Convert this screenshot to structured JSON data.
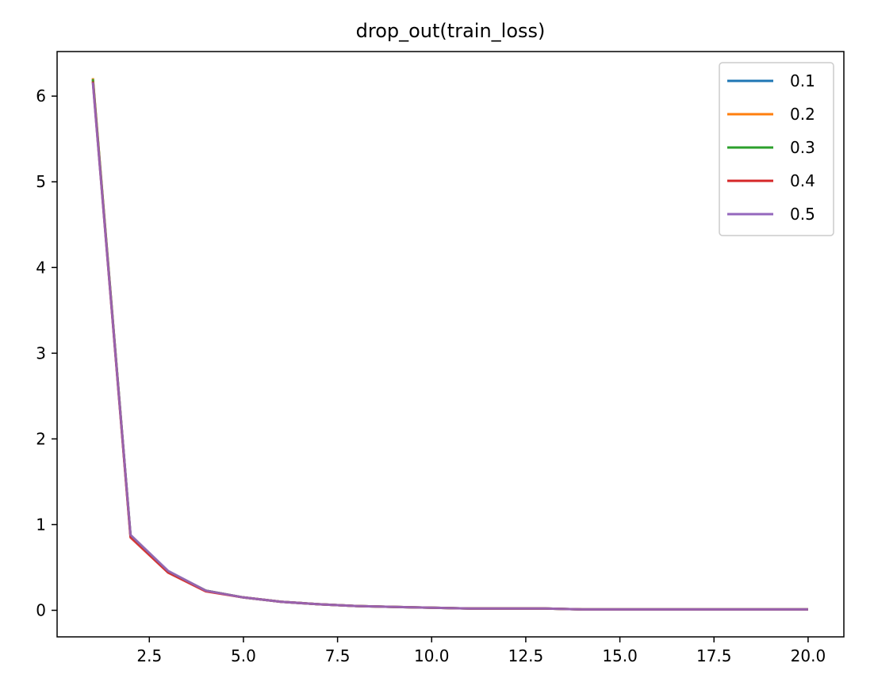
{
  "chart_data": {
    "type": "line",
    "title": "drop_out(train_loss)",
    "xlabel": "",
    "ylabel": "",
    "xlim": [
      0.05,
      20.95
    ],
    "ylim": [
      -0.31,
      6.52
    ],
    "xticks": [
      2.5,
      5.0,
      7.5,
      10.0,
      12.5,
      15.0,
      17.5,
      20.0
    ],
    "xtick_labels": [
      "2.5",
      "5.0",
      "7.5",
      "10.0",
      "12.5",
      "15.0",
      "17.5",
      "20.0"
    ],
    "yticks": [
      0,
      1,
      2,
      3,
      4,
      5,
      6
    ],
    "ytick_labels": [
      "0",
      "1",
      "2",
      "3",
      "4",
      "5",
      "6"
    ],
    "grid": false,
    "legend_position": "top-right",
    "x": [
      1,
      2,
      3,
      4,
      5,
      6,
      7,
      8,
      9,
      10,
      11,
      12,
      13,
      14,
      15,
      16,
      17,
      18,
      19,
      20
    ],
    "series": [
      {
        "name": "0.1",
        "color": "#1f77b4",
        "values": [
          6.19,
          0.87,
          0.45,
          0.23,
          0.15,
          0.1,
          0.07,
          0.05,
          0.04,
          0.03,
          0.02,
          0.02,
          0.02,
          0.01,
          0.01,
          0.01,
          0.01,
          0.01,
          0.01,
          0.01
        ]
      },
      {
        "name": "0.2",
        "color": "#ff7f0e",
        "values": [
          6.21,
          0.87,
          0.45,
          0.23,
          0.15,
          0.1,
          0.07,
          0.05,
          0.04,
          0.03,
          0.02,
          0.02,
          0.02,
          0.01,
          0.01,
          0.01,
          0.01,
          0.01,
          0.01,
          0.01
        ]
      },
      {
        "name": "0.3",
        "color": "#2ca02c",
        "values": [
          6.2,
          0.87,
          0.45,
          0.23,
          0.15,
          0.1,
          0.07,
          0.05,
          0.04,
          0.03,
          0.02,
          0.02,
          0.02,
          0.01,
          0.01,
          0.01,
          0.01,
          0.01,
          0.01,
          0.01
        ]
      },
      {
        "name": "0.4",
        "color": "#d62728",
        "values": [
          6.17,
          0.85,
          0.44,
          0.22,
          0.15,
          0.1,
          0.07,
          0.05,
          0.04,
          0.03,
          0.02,
          0.02,
          0.02,
          0.01,
          0.01,
          0.01,
          0.01,
          0.01,
          0.01,
          0.01
        ]
      },
      {
        "name": "0.5",
        "color": "#9467bd",
        "values": [
          6.16,
          0.88,
          0.46,
          0.23,
          0.15,
          0.1,
          0.07,
          0.05,
          0.04,
          0.03,
          0.02,
          0.02,
          0.02,
          0.01,
          0.01,
          0.01,
          0.01,
          0.01,
          0.01,
          0.01
        ]
      }
    ]
  }
}
